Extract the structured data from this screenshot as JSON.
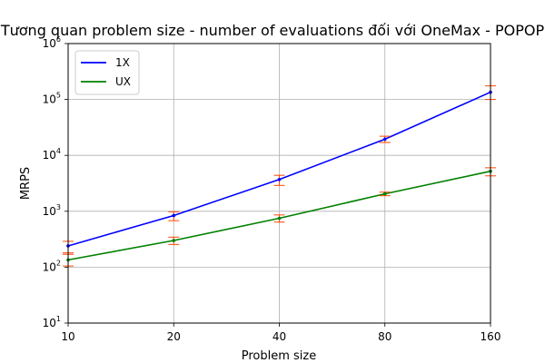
{
  "chart_data": {
    "type": "line",
    "title": "Tương quan problem size - number of evaluations đối với OneMax - POPOP",
    "xlabel": "Problem size",
    "ylabel": "MRPS",
    "x_scale": "log2",
    "y_scale": "log10",
    "xlim": [
      10,
      160
    ],
    "ylim": [
      10,
      1000000
    ],
    "x_ticks": [
      {
        "value": 10,
        "label": "10"
      },
      {
        "value": 20,
        "label": "20"
      },
      {
        "value": 40,
        "label": "40"
      },
      {
        "value": 80,
        "label": "80"
      },
      {
        "value": 160,
        "label": "160"
      }
    ],
    "y_ticks": [
      {
        "value": 10,
        "base": "10",
        "exp": "1"
      },
      {
        "value": 100,
        "base": "10",
        "exp": "2"
      },
      {
        "value": 1000,
        "base": "10",
        "exp": "3"
      },
      {
        "value": 10000,
        "base": "10",
        "exp": "4"
      },
      {
        "value": 100000,
        "base": "10",
        "exp": "5"
      },
      {
        "value": 1000000,
        "base": "10",
        "exp": "6"
      }
    ],
    "x": [
      10,
      20,
      40,
      80,
      160
    ],
    "grid": true,
    "legend_position": "top-left",
    "series": [
      {
        "name": "1X",
        "color": "#0000ff",
        "values": [
          240,
          840,
          3700,
          19500,
          135000
        ],
        "error_low": [
          180,
          680,
          2900,
          17000,
          100000
        ],
        "error_high": [
          290,
          980,
          4400,
          22000,
          175000
        ]
      },
      {
        "name": "UX",
        "color": "#008000",
        "values": [
          135,
          300,
          750,
          2050,
          5200
        ],
        "error_low": [
          105,
          255,
          640,
          1900,
          4300
        ],
        "error_high": [
          170,
          345,
          860,
          2200,
          6000
        ]
      }
    ],
    "error_bar_color": "#ff4500"
  }
}
